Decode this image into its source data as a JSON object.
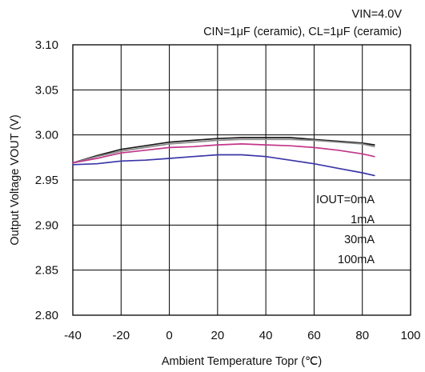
{
  "chart_data": {
    "type": "line",
    "title": "",
    "conditions": {
      "vin": "VIN=4.0V",
      "caps": "CIN=1μF (ceramic), CL=1μF (ceramic)"
    },
    "xlabel": "Ambient Temperature Topr (℃)",
    "ylabel": "Output Voltage VOUT (V)",
    "xlim": [
      -40,
      100
    ],
    "ylim": [
      2.8,
      3.1
    ],
    "x_ticks": [
      "-40",
      "-20",
      "0",
      "20",
      "40",
      "60",
      "80",
      "100"
    ],
    "y_ticks": [
      "2.80",
      "2.85",
      "2.90",
      "2.95",
      "3.00",
      "3.05",
      "3.10"
    ],
    "grid": true,
    "legend": {
      "placement": "inside right",
      "entries": [
        "IOUT=0mA",
        "1mA",
        "30mA",
        "100mA"
      ]
    },
    "series": [
      {
        "name": "IOUT=0mA",
        "color": "#1a1a1a",
        "x": [
          -40,
          -30,
          -20,
          -10,
          0,
          10,
          20,
          30,
          40,
          50,
          60,
          70,
          80,
          85
        ],
        "y": [
          2.969,
          2.977,
          2.984,
          2.988,
          2.992,
          2.994,
          2.996,
          2.997,
          2.997,
          2.997,
          2.995,
          2.993,
          2.991,
          2.989
        ]
      },
      {
        "name": "1mA",
        "color": "#8a8a8a",
        "x": [
          -40,
          -30,
          -20,
          -10,
          0,
          10,
          20,
          30,
          40,
          50,
          60,
          70,
          80,
          85
        ],
        "y": [
          2.969,
          2.976,
          2.982,
          2.986,
          2.99,
          2.992,
          2.994,
          2.995,
          2.995,
          2.995,
          2.994,
          2.992,
          2.99,
          2.987
        ]
      },
      {
        "name": "30mA",
        "color": "#c2358a",
        "x": [
          -40,
          -30,
          -20,
          -10,
          0,
          10,
          20,
          30,
          40,
          50,
          60,
          70,
          80,
          85
        ],
        "y": [
          2.969,
          2.974,
          2.98,
          2.983,
          2.986,
          2.987,
          2.989,
          2.99,
          2.989,
          2.988,
          2.986,
          2.983,
          2.979,
          2.976
        ]
      },
      {
        "name": "100mA",
        "color": "#3b36a8",
        "x": [
          -40,
          -30,
          -20,
          -10,
          0,
          10,
          20,
          30,
          40,
          50,
          60,
          70,
          80,
          85
        ],
        "y": [
          2.967,
          2.968,
          2.971,
          2.972,
          2.974,
          2.976,
          2.978,
          2.978,
          2.976,
          2.972,
          2.968,
          2.963,
          2.958,
          2.955
        ]
      }
    ]
  }
}
